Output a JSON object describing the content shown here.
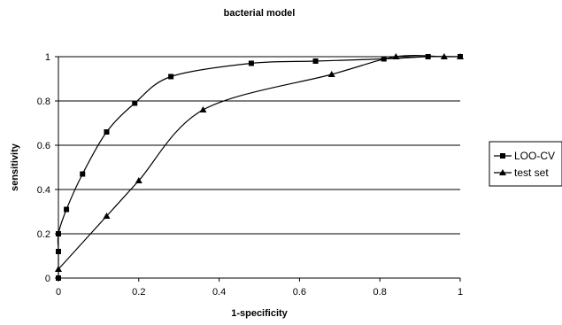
{
  "chart_data": {
    "type": "line",
    "title": "bacterial model",
    "xlabel": "1-specificity",
    "ylabel": "sensitivity",
    "xlim": [
      0,
      1
    ],
    "ylim": [
      0,
      1
    ],
    "xticks": [
      "0",
      "0.2",
      "0.4",
      "0.6",
      "0.8",
      "1"
    ],
    "yticks": [
      "0",
      "0.2",
      "0.4",
      "0.6",
      "0.8",
      "1"
    ],
    "grid": "horizontal",
    "legend_position": "right",
    "series": [
      {
        "name": "LOO-CV",
        "marker": "square",
        "color": "#000000",
        "x": [
          0,
          0,
          0,
          0.02,
          0.06,
          0.12,
          0.19,
          0.28,
          0.48,
          0.64,
          0.81,
          0.92,
          1.0
        ],
        "y": [
          0,
          0.12,
          0.2,
          0.31,
          0.47,
          0.66,
          0.79,
          0.91,
          0.97,
          0.98,
          0.99,
          1.0,
          1.0
        ]
      },
      {
        "name": "test set",
        "marker": "triangle",
        "color": "#000000",
        "x": [
          0,
          0.12,
          0.2,
          0.36,
          0.68,
          0.84,
          0.96,
          1.0
        ],
        "y": [
          0.04,
          0.28,
          0.44,
          0.76,
          0.92,
          1.0,
          1.0,
          1.0
        ]
      }
    ]
  }
}
